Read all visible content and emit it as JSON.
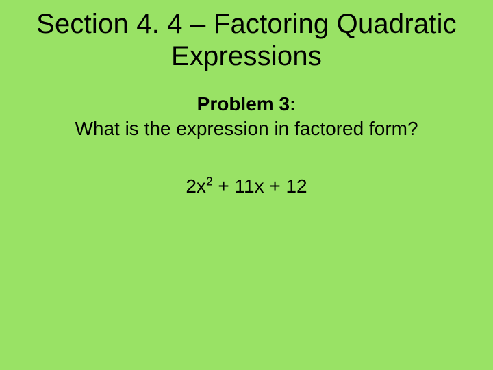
{
  "slide": {
    "background_color": "#99e265",
    "text_color": "#000000",
    "font_family": "Arial"
  },
  "title": {
    "text": "Section 4. 4 – Factoring Quadratic Expressions",
    "fontsize": 40,
    "weight": 400
  },
  "problem": {
    "label": "Problem 3:",
    "label_fontsize": 28,
    "label_weight": 700,
    "question": "What is the expression in factored form?",
    "question_fontsize": 28,
    "question_weight": 400
  },
  "expression": {
    "term1_coef": "2x",
    "term1_exp": "2",
    "rest": " + 11x + 12",
    "fontsize": 28,
    "weight": 400
  }
}
